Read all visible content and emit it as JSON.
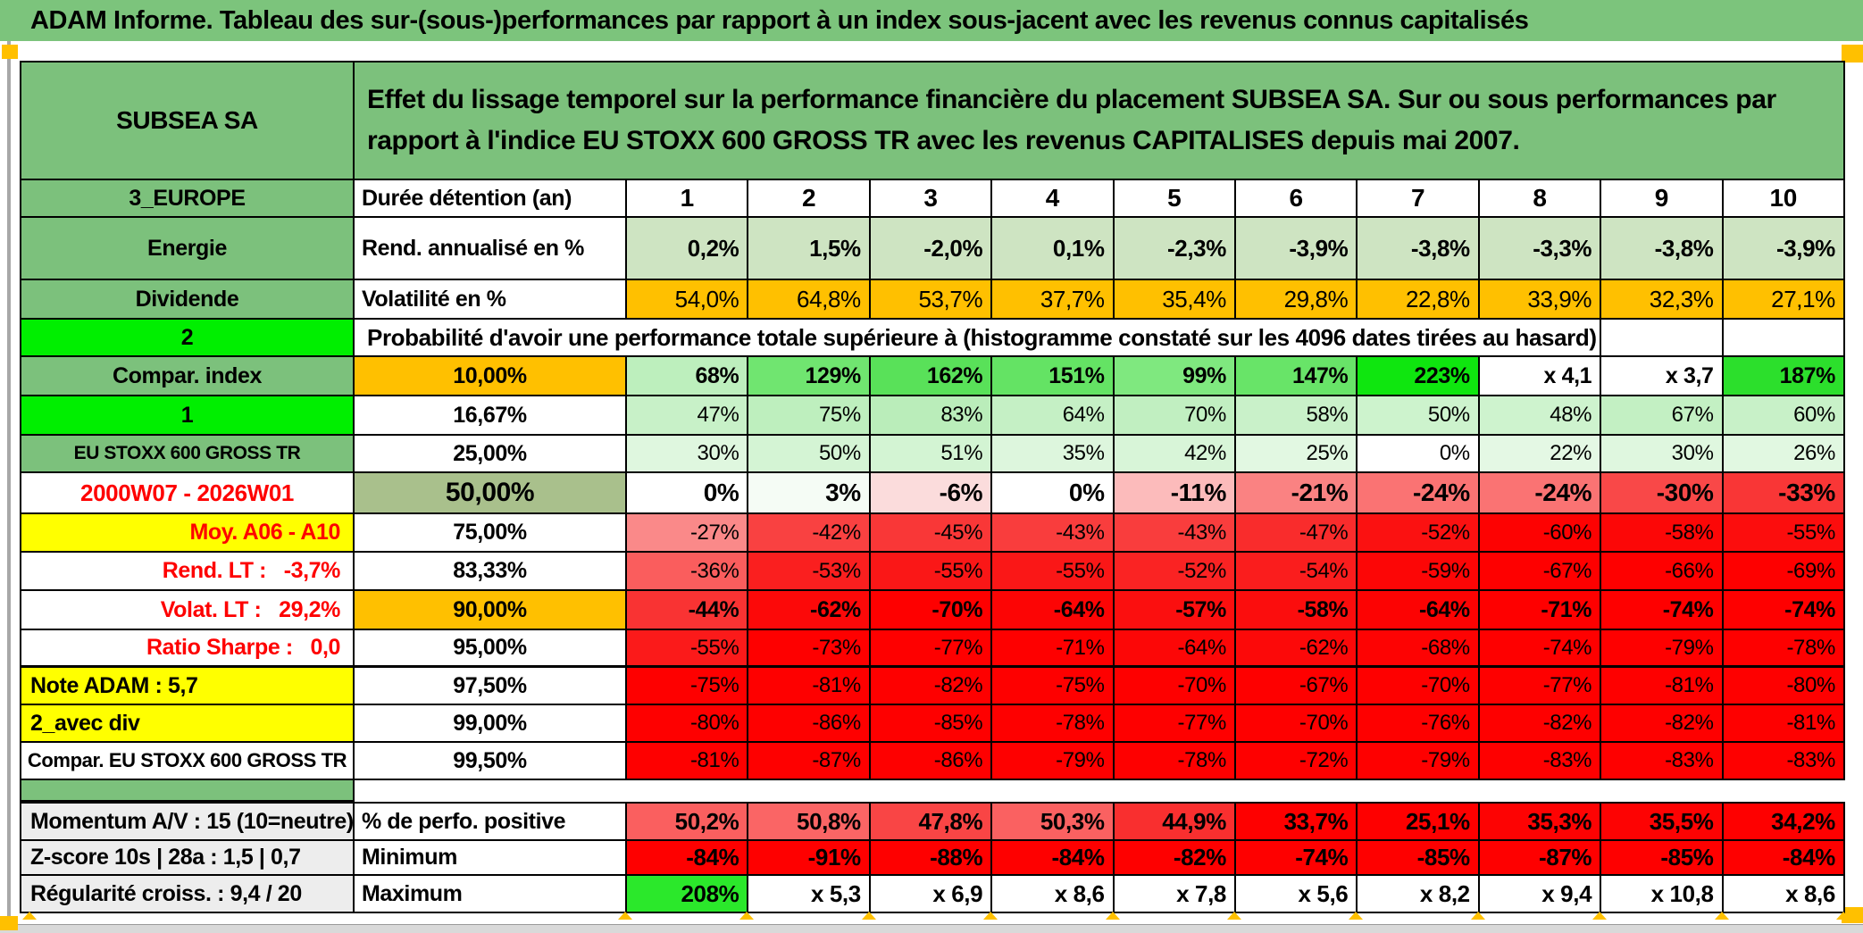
{
  "title": "ADAM Informe. Tableau des sur-(sous-)performances par rapport à un index sous-jacent avec les revenus connus capitalisés",
  "header": {
    "security_name": "SUBSEA SA",
    "description": "Effet du lissage temporel sur la performance financière du placement SUBSEA SA. Sur ou sous performances par rapport à l'indice EU STOXX 600 GROSS TR avec les revenus CAPITALISES depuis mai 2007."
  },
  "colors": {
    "band_green": "#7CC47C",
    "header_green": "#7CC17C",
    "lime": "#00EF00",
    "orange": "#FFC000",
    "yellow": "#FFFF00",
    "olive": "#A9C08C",
    "light_green_band": "#CEE4C2",
    "gray_label": "#EDEDED",
    "red": "#FE0000",
    "comment_marker": "#FF0000"
  },
  "rows": [
    {
      "id": "duree",
      "type": "standard",
      "left": "3_EUROPE",
      "leftBg": "#7CC17C",
      "leftColor": "#000000",
      "mid": "Durée détention (an)",
      "midBg": "#FFFFFF",
      "values": [
        "1",
        "2",
        "3",
        "4",
        "5",
        "6",
        "7",
        "8",
        "9",
        "10"
      ],
      "bgs": [
        "#FFFFFF",
        "#FFFFFF",
        "#FFFFFF",
        "#FFFFFF",
        "#FFFFFF",
        "#FFFFFF",
        "#FFFFFF",
        "#FFFFFF",
        "#FFFFFF",
        "#FFFFFF"
      ]
    },
    {
      "id": "energie",
      "type": "standard",
      "left": "Energie",
      "leftBg": "#7CC17C",
      "leftColor": "#000000",
      "mid": "Rend. annualisé en %",
      "midBg": "#FFFFFF",
      "values": [
        "0,2%",
        "1,5%",
        "-2,0%",
        "0,1%",
        "-2,3%",
        "-3,9%",
        "-3,8%",
        "-3,3%",
        "-3,8%",
        "-3,9%"
      ],
      "bgs": [
        "#CEE4C2",
        "#CEE4C2",
        "#CEE4C2",
        "#CEE4C2",
        "#CEE4C2",
        "#CEE4C2",
        "#CEE4C2",
        "#CEE4C2",
        "#CEE4C2",
        "#CEE4C2"
      ]
    },
    {
      "id": "dividende",
      "type": "standard",
      "left": "Dividende",
      "leftBg": "#7CC17C",
      "leftColor": "#000000",
      "mid": "Volatilité en %",
      "midBg": "#FFFFFF",
      "values": [
        "54,0%",
        "64,8%",
        "53,7%",
        "37,7%",
        "35,4%",
        "29,8%",
        "22,8%",
        "33,9%",
        "32,3%",
        "27,1%"
      ],
      "bgs": [
        "#FFC000",
        "#FFC000",
        "#FFC000",
        "#FFC000",
        "#FFC000",
        "#FFC000",
        "#FFC000",
        "#FFC000",
        "#FFC000",
        "#FFC000"
      ]
    },
    {
      "id": "proba",
      "type": "proba",
      "left": "2",
      "leftBg": "#00EF00",
      "leftColor": "#000000",
      "corner": true,
      "text": "Probabilité d'avoir une performance totale supérieure à (histogramme constaté sur les 4096 dates tirées au hasard)"
    },
    {
      "id": "r10",
      "type": "standard",
      "left": "Compar. index",
      "leftBg": "#7CC17C",
      "leftColor": "#000000",
      "mid": "10,00%",
      "midBg": "#FFC000",
      "values": [
        "68%",
        "129%",
        "162%",
        "151%",
        "99%",
        "147%",
        "223%",
        "x 4,1",
        "x 3,7",
        "187%"
      ],
      "bgs": [
        "#BDEFBD",
        "#70E570",
        "#59E159",
        "#64E364",
        "#7FE87F",
        "#68E468",
        "#0FE60F",
        "#FFFFFF",
        "#FFFFFF",
        "#2CDF2C"
      ]
    },
    {
      "id": "r16",
      "type": "standard",
      "left": "1",
      "leftBg": "#00EF00",
      "leftColor": "#000000",
      "corner": true,
      "mid": "16,67%",
      "midBg": "#FFFFFF",
      "values": [
        "47%",
        "75%",
        "83%",
        "64%",
        "70%",
        "58%",
        "50%",
        "48%",
        "67%",
        "60%"
      ],
      "bgs": [
        "#C8F1C8",
        "#BEEFBE",
        "#BAEDBA",
        "#C5F0C5",
        "#C1EFC1",
        "#C9F1C9",
        "#CDF3CD",
        "#CEF3CE",
        "#C3F0C3",
        "#C8F1C8"
      ]
    },
    {
      "id": "r25",
      "type": "standard",
      "left": "EU STOXX 600 GROSS TR",
      "leftBg": "#7CC17C",
      "leftColor": "#000000",
      "mid": "25,00%",
      "midBg": "#FFFFFF",
      "values": [
        "30%",
        "50%",
        "51%",
        "35%",
        "42%",
        "25%",
        "0%",
        "22%",
        "30%",
        "26%"
      ],
      "bgs": [
        "#DFF7DF",
        "#D4F4D4",
        "#D3F4D3",
        "#DDF6DD",
        "#D8F5D8",
        "#E2F8E2",
        "#FFFFFF",
        "#E4F8E4",
        "#DFF7DF",
        "#E1F8E1"
      ]
    },
    {
      "id": "r50",
      "type": "standard",
      "left": "2000W07 - 2026W01",
      "leftBg": "#FFFFFF",
      "leftColor": "#FE0000",
      "mid": "50,00%",
      "midBg": "#A9C08C",
      "values": [
        "0%",
        "3%",
        "-6%",
        "0%",
        "-11%",
        "-21%",
        "-24%",
        "-24%",
        "-30%",
        "-33%"
      ],
      "bgs": [
        "#FFFFFF",
        "#F5FCF5",
        "#FBDCDC",
        "#FFFFFF",
        "#FCBBBB",
        "#FA8282",
        "#FA7373",
        "#FA7373",
        "#F94848",
        "#F93636"
      ]
    },
    {
      "id": "r75",
      "type": "standard",
      "left": "Moy. A06 - A10",
      "leftBg": "#FFFF00",
      "leftColor": "#FE0000",
      "mid": "75,00%",
      "midBg": "#FFFFFF",
      "values": [
        "-27%",
        "-42%",
        "-45%",
        "-43%",
        "-43%",
        "-47%",
        "-52%",
        "-60%",
        "-58%",
        "-55%"
      ],
      "bgs": [
        "#FA8989",
        "#F94141",
        "#F93737",
        "#F93D3D",
        "#F93D3D",
        "#F92C2C",
        "#FB1111",
        "#FD0202",
        "#FC0707",
        "#FC0D0D"
      ]
    },
    {
      "id": "r83",
      "type": "standard",
      "left": "Rend. LT :   -3,7%",
      "leftBg": "#FFFFFF",
      "leftColor": "#FE0000",
      "mid": "83,33%",
      "midBg": "#FFFFFF",
      "values": [
        "-36%",
        "-53%",
        "-55%",
        "-55%",
        "-52%",
        "-54%",
        "-59%",
        "-67%",
        "-66%",
        "-69%"
      ],
      "bgs": [
        "#FA5D5D",
        "#FA1F1F",
        "#FA1717",
        "#FA1717",
        "#FA2323",
        "#FA1D1D",
        "#FC0606",
        "#FE0000",
        "#FE0000",
        "#FE0000"
      ]
    },
    {
      "id": "r90",
      "type": "standard",
      "left": "Volat. LT :   29,2%",
      "leftBg": "#FFFFFF",
      "leftColor": "#FE0000",
      "mid": "90,00%",
      "midBg": "#FFC000",
      "values": [
        "-44%",
        "-62%",
        "-70%",
        "-64%",
        "-57%",
        "-58%",
        "-64%",
        "-71%",
        "-74%",
        "-74%"
      ],
      "bgs": [
        "#F93333",
        "#FC0909",
        "#FE0000",
        "#FC0505",
        "#FB0F0F",
        "#FB0D0D",
        "#FC0303",
        "#FE0000",
        "#FE0000",
        "#FE0000"
      ]
    },
    {
      "id": "r95",
      "type": "standard",
      "left": "Ratio Sharpe :   0,0",
      "leftBg": "#FFFFFF",
      "leftColor": "#FE0000",
      "mid": "95,00%",
      "midBg": "#FFFFFF",
      "values": [
        "-55%",
        "-73%",
        "-77%",
        "-71%",
        "-64%",
        "-62%",
        "-68%",
        "-74%",
        "-79%",
        "-78%"
      ],
      "bgs": [
        "#FB1A1A",
        "#FE0000",
        "#FE0000",
        "#FE0000",
        "#FC0707",
        "#FC0909",
        "#FD0303",
        "#FE0000",
        "#FE0000",
        "#FE0000"
      ]
    },
    {
      "id": "r97",
      "type": "standard",
      "left": "Note ADAM : 5,7",
      "leftBg": "#FFFF00",
      "leftColor": "#000000",
      "mid": "97,50%",
      "midBg": "#FFFFFF",
      "values": [
        "-75%",
        "-81%",
        "-82%",
        "-75%",
        "-70%",
        "-67%",
        "-70%",
        "-77%",
        "-81%",
        "-80%"
      ],
      "bgs": [
        "#FE0000",
        "#FE0000",
        "#FE0000",
        "#FE0000",
        "#FE0000",
        "#FE0000",
        "#FE0000",
        "#FE0000",
        "#FE0000",
        "#FE0000"
      ]
    },
    {
      "id": "r99",
      "type": "standard",
      "left": "2_avec div",
      "leftBg": "#FFFF00",
      "leftColor": "#000000",
      "mid": "99,00%",
      "midBg": "#FFFFFF",
      "values": [
        "-80%",
        "-86%",
        "-85%",
        "-78%",
        "-77%",
        "-70%",
        "-76%",
        "-82%",
        "-82%",
        "-81%"
      ],
      "bgs": [
        "#FE0000",
        "#FE0000",
        "#FE0000",
        "#FE0000",
        "#FE0000",
        "#FE0000",
        "#FE0000",
        "#FE0000",
        "#FE0000",
        "#FE0000"
      ]
    },
    {
      "id": "r995",
      "type": "standard",
      "left": "Compar. EU STOXX 600 GROSS TR",
      "leftBg": "#FFFFFF",
      "leftColor": "#000000",
      "mid": "99,50%",
      "midBg": "#FFFFFF",
      "values": [
        "-81%",
        "-87%",
        "-86%",
        "-79%",
        "-78%",
        "-72%",
        "-79%",
        "-83%",
        "-83%",
        "-83%"
      ],
      "bgs": [
        "#FE0000",
        "#FE0000",
        "#FE0000",
        "#FE0000",
        "#FE0000",
        "#FE0000",
        "#FE0000",
        "#FE0000",
        "#FE0000",
        "#FE0000"
      ]
    },
    {
      "id": "strip",
      "type": "strip",
      "left": "",
      "leftBg": "#7CC17C",
      "leftColor": "#000000"
    },
    {
      "id": "momentum",
      "type": "standard",
      "left": "Momentum A/V : 15 (10=neutre)",
      "leftBg": "#EDEDED",
      "leftColor": "#000000",
      "mid": "% de perfo. positive",
      "midBg": "#FFFFFF",
      "values": [
        "50,2%",
        "50,8%",
        "47,8%",
        "50,3%",
        "44,9%",
        "33,7%",
        "25,1%",
        "35,3%",
        "35,5%",
        "34,2%"
      ],
      "bgs": [
        "#FA5F5F",
        "#FA6565",
        "#F94545",
        "#FA6161",
        "#F92F2F",
        "#FE0000",
        "#FE0000",
        "#FD0303",
        "#FD0303",
        "#FE0000"
      ]
    },
    {
      "id": "zscore",
      "type": "standard",
      "left": "Z-score 10s | 28a : 1,5 | 0,7",
      "leftBg": "#EDEDED",
      "leftColor": "#000000",
      "mid": "Minimum",
      "midBg": "#FFFFFF",
      "values": [
        "-84%",
        "-91%",
        "-88%",
        "-84%",
        "-82%",
        "-74%",
        "-85%",
        "-87%",
        "-85%",
        "-84%"
      ],
      "bgs": [
        "#FE0000",
        "#FE0000",
        "#FE0000",
        "#FE0000",
        "#FE0000",
        "#FE0000",
        "#FE0000",
        "#FE0000",
        "#FE0000",
        "#FE0000"
      ]
    },
    {
      "id": "regularite",
      "type": "standard",
      "left": "Régularité croiss. : 9,4 / 20",
      "leftBg": "#EDEDED",
      "leftColor": "#000000",
      "mid": "Maximum",
      "midBg": "#FFFFFF",
      "values": [
        "208%",
        "x 5,3",
        "x 6,9",
        "x 8,6",
        "x 7,8",
        "x 5,6",
        "x 8,2",
        "x 9,4",
        "x 10,8",
        "x 8,6"
      ],
      "bgs": [
        "#2BE82B",
        "#FFFFFF",
        "#FFFFFF",
        "#FFFFFF",
        "#FFFFFF",
        "#FFFFFF",
        "#FFFFFF",
        "#FFFFFF",
        "#FFFFFF",
        "#FFFFFF"
      ]
    }
  ]
}
